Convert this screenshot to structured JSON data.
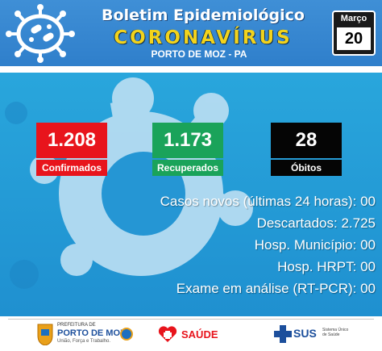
{
  "header": {
    "title": "Boletim Epidemiológico",
    "subtitle_brand": "CORONAVÍRUS",
    "location": "PORTO DE MOZ - PA",
    "date": {
      "month": "Março",
      "day": "20"
    }
  },
  "stats": [
    {
      "value": "1.208",
      "label": "Confirmados",
      "color": "#e8141c"
    },
    {
      "value": "1.173",
      "label": "Recuperados",
      "color": "#1aa35a"
    },
    {
      "value": "28",
      "label": "Óbitos",
      "color": "#050505"
    }
  ],
  "info_lines": [
    "Casos novos (últimas 24 horas): 00",
    "Descartados: 2.725",
    "Hosp. Município: 00",
    "Hosp. HRPT: 00",
    "Exame em análise (RT-PCR): 00"
  ],
  "footer": {
    "prefeitura": {
      "line1": "PREFEITURA DE",
      "line2": "PORTO DE MOZ",
      "tagline": "União, Força e Trabalho."
    },
    "saude": "SAÚDE",
    "sus": {
      "name": "SUS",
      "caption": "Sistema Único de Saúde"
    }
  },
  "colors": {
    "header_blue": "#3a8ad4",
    "brand_yellow": "#f2d31c",
    "panel_blue": "#29a6dc"
  }
}
